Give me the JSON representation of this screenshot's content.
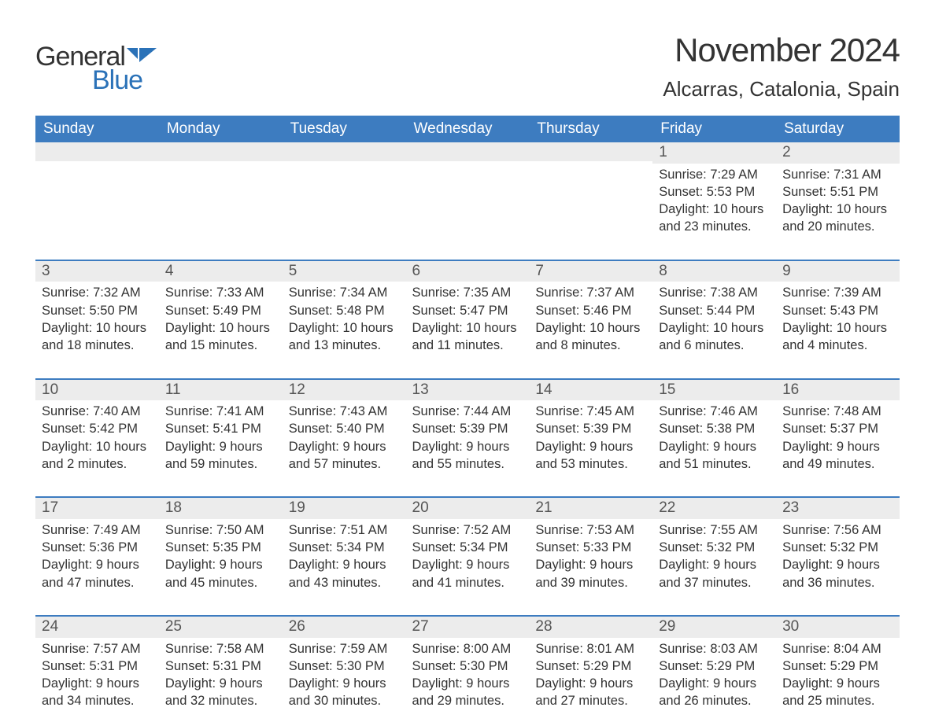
{
  "logo": {
    "text1": "General",
    "text2": "Blue"
  },
  "title": "November 2024",
  "location": "Alcarras, Catalonia, Spain",
  "colors": {
    "header_bg": "#3d7cc0",
    "header_text": "#ffffff",
    "daynum_bg": "#ececec",
    "border": "#3d7cc0",
    "text": "#333333",
    "logo_blue": "#2b72b8"
  },
  "day_names": [
    "Sunday",
    "Monday",
    "Tuesday",
    "Wednesday",
    "Thursday",
    "Friday",
    "Saturday"
  ],
  "weeks": [
    [
      {
        "n": "",
        "sunrise": "",
        "sunset": "",
        "daylight": ""
      },
      {
        "n": "",
        "sunrise": "",
        "sunset": "",
        "daylight": ""
      },
      {
        "n": "",
        "sunrise": "",
        "sunset": "",
        "daylight": ""
      },
      {
        "n": "",
        "sunrise": "",
        "sunset": "",
        "daylight": ""
      },
      {
        "n": "",
        "sunrise": "",
        "sunset": "",
        "daylight": ""
      },
      {
        "n": "1",
        "sunrise": "Sunrise: 7:29 AM",
        "sunset": "Sunset: 5:53 PM",
        "daylight": "Daylight: 10 hours and 23 minutes."
      },
      {
        "n": "2",
        "sunrise": "Sunrise: 7:31 AM",
        "sunset": "Sunset: 5:51 PM",
        "daylight": "Daylight: 10 hours and 20 minutes."
      }
    ],
    [
      {
        "n": "3",
        "sunrise": "Sunrise: 7:32 AM",
        "sunset": "Sunset: 5:50 PM",
        "daylight": "Daylight: 10 hours and 18 minutes."
      },
      {
        "n": "4",
        "sunrise": "Sunrise: 7:33 AM",
        "sunset": "Sunset: 5:49 PM",
        "daylight": "Daylight: 10 hours and 15 minutes."
      },
      {
        "n": "5",
        "sunrise": "Sunrise: 7:34 AM",
        "sunset": "Sunset: 5:48 PM",
        "daylight": "Daylight: 10 hours and 13 minutes."
      },
      {
        "n": "6",
        "sunrise": "Sunrise: 7:35 AM",
        "sunset": "Sunset: 5:47 PM",
        "daylight": "Daylight: 10 hours and 11 minutes."
      },
      {
        "n": "7",
        "sunrise": "Sunrise: 7:37 AM",
        "sunset": "Sunset: 5:46 PM",
        "daylight": "Daylight: 10 hours and 8 minutes."
      },
      {
        "n": "8",
        "sunrise": "Sunrise: 7:38 AM",
        "sunset": "Sunset: 5:44 PM",
        "daylight": "Daylight: 10 hours and 6 minutes."
      },
      {
        "n": "9",
        "sunrise": "Sunrise: 7:39 AM",
        "sunset": "Sunset: 5:43 PM",
        "daylight": "Daylight: 10 hours and 4 minutes."
      }
    ],
    [
      {
        "n": "10",
        "sunrise": "Sunrise: 7:40 AM",
        "sunset": "Sunset: 5:42 PM",
        "daylight": "Daylight: 10 hours and 2 minutes."
      },
      {
        "n": "11",
        "sunrise": "Sunrise: 7:41 AM",
        "sunset": "Sunset: 5:41 PM",
        "daylight": "Daylight: 9 hours and 59 minutes."
      },
      {
        "n": "12",
        "sunrise": "Sunrise: 7:43 AM",
        "sunset": "Sunset: 5:40 PM",
        "daylight": "Daylight: 9 hours and 57 minutes."
      },
      {
        "n": "13",
        "sunrise": "Sunrise: 7:44 AM",
        "sunset": "Sunset: 5:39 PM",
        "daylight": "Daylight: 9 hours and 55 minutes."
      },
      {
        "n": "14",
        "sunrise": "Sunrise: 7:45 AM",
        "sunset": "Sunset: 5:39 PM",
        "daylight": "Daylight: 9 hours and 53 minutes."
      },
      {
        "n": "15",
        "sunrise": "Sunrise: 7:46 AM",
        "sunset": "Sunset: 5:38 PM",
        "daylight": "Daylight: 9 hours and 51 minutes."
      },
      {
        "n": "16",
        "sunrise": "Sunrise: 7:48 AM",
        "sunset": "Sunset: 5:37 PM",
        "daylight": "Daylight: 9 hours and 49 minutes."
      }
    ],
    [
      {
        "n": "17",
        "sunrise": "Sunrise: 7:49 AM",
        "sunset": "Sunset: 5:36 PM",
        "daylight": "Daylight: 9 hours and 47 minutes."
      },
      {
        "n": "18",
        "sunrise": "Sunrise: 7:50 AM",
        "sunset": "Sunset: 5:35 PM",
        "daylight": "Daylight: 9 hours and 45 minutes."
      },
      {
        "n": "19",
        "sunrise": "Sunrise: 7:51 AM",
        "sunset": "Sunset: 5:34 PM",
        "daylight": "Daylight: 9 hours and 43 minutes."
      },
      {
        "n": "20",
        "sunrise": "Sunrise: 7:52 AM",
        "sunset": "Sunset: 5:34 PM",
        "daylight": "Daylight: 9 hours and 41 minutes."
      },
      {
        "n": "21",
        "sunrise": "Sunrise: 7:53 AM",
        "sunset": "Sunset: 5:33 PM",
        "daylight": "Daylight: 9 hours and 39 minutes."
      },
      {
        "n": "22",
        "sunrise": "Sunrise: 7:55 AM",
        "sunset": "Sunset: 5:32 PM",
        "daylight": "Daylight: 9 hours and 37 minutes."
      },
      {
        "n": "23",
        "sunrise": "Sunrise: 7:56 AM",
        "sunset": "Sunset: 5:32 PM",
        "daylight": "Daylight: 9 hours and 36 minutes."
      }
    ],
    [
      {
        "n": "24",
        "sunrise": "Sunrise: 7:57 AM",
        "sunset": "Sunset: 5:31 PM",
        "daylight": "Daylight: 9 hours and 34 minutes."
      },
      {
        "n": "25",
        "sunrise": "Sunrise: 7:58 AM",
        "sunset": "Sunset: 5:31 PM",
        "daylight": "Daylight: 9 hours and 32 minutes."
      },
      {
        "n": "26",
        "sunrise": "Sunrise: 7:59 AM",
        "sunset": "Sunset: 5:30 PM",
        "daylight": "Daylight: 9 hours and 30 minutes."
      },
      {
        "n": "27",
        "sunrise": "Sunrise: 8:00 AM",
        "sunset": "Sunset: 5:30 PM",
        "daylight": "Daylight: 9 hours and 29 minutes."
      },
      {
        "n": "28",
        "sunrise": "Sunrise: 8:01 AM",
        "sunset": "Sunset: 5:29 PM",
        "daylight": "Daylight: 9 hours and 27 minutes."
      },
      {
        "n": "29",
        "sunrise": "Sunrise: 8:03 AM",
        "sunset": "Sunset: 5:29 PM",
        "daylight": "Daylight: 9 hours and 26 minutes."
      },
      {
        "n": "30",
        "sunrise": "Sunrise: 8:04 AM",
        "sunset": "Sunset: 5:29 PM",
        "daylight": "Daylight: 9 hours and 25 minutes."
      }
    ]
  ]
}
